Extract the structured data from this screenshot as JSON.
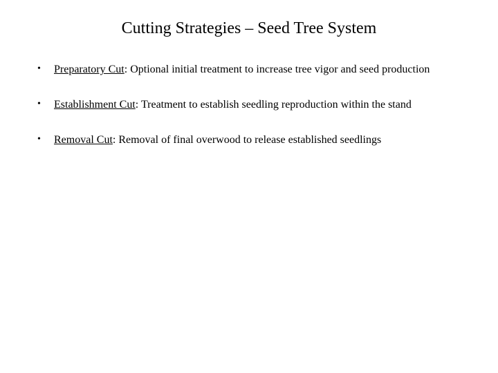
{
  "slide": {
    "title": "Cutting Strategies – Seed Tree System",
    "title_fontsize": 24,
    "body_fontsize": 16,
    "background_color": "#ffffff",
    "text_color": "#000000",
    "font_family": "Times New Roman",
    "bullets": [
      {
        "term": "Preparatory Cut",
        "desc": ": Optional initial treatment to increase tree vigor and seed production"
      },
      {
        "term": "Establishment Cut",
        "desc": ": Treatment to establish seedling reproduction within the stand"
      },
      {
        "term": "Removal Cut",
        "desc": ": Removal of final overwood to release established seedlings"
      }
    ],
    "bullet_marker": "•"
  }
}
